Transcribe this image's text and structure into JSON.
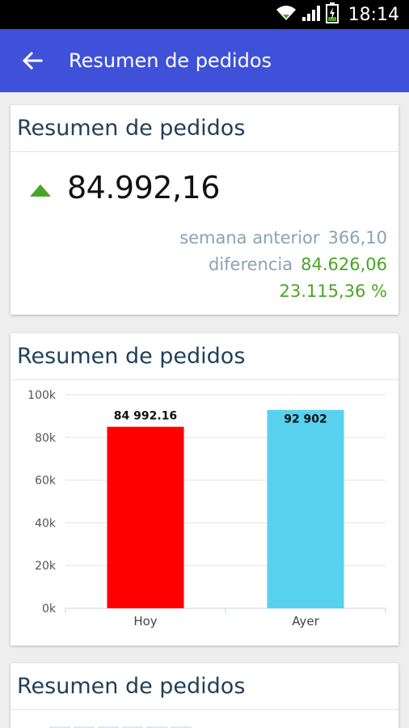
{
  "status_bar": {
    "time": "18:14"
  },
  "app_bar": {
    "title": "Resumen de pedidos"
  },
  "card1": {
    "title": "Resumen de pedidos",
    "value": "84.992,16",
    "trend": "up",
    "prev_label": "semana anterior",
    "prev_value": "366,10",
    "diff_label": "diferencia",
    "diff_value": "84.626,06",
    "pct": "23.115,36 %"
  },
  "card2": {
    "title": "Resumen de pedidos"
  },
  "card3": {
    "title": "Resumen de pedidos"
  },
  "colors": {
    "app_bar": "#3f51d8",
    "title_text": "#1f3f5a",
    "positive": "#4aa524",
    "muted": "#8aa3b4",
    "bar_hoy": "#ff0000",
    "bar_ayer": "#58d1ee"
  },
  "chart_data": {
    "type": "bar",
    "categories": [
      "Hoy",
      "Ayer"
    ],
    "values": [
      84992.16,
      92902
    ],
    "data_labels": [
      "84 992.16",
      "92 902"
    ],
    "bar_colors": [
      "#ff0000",
      "#58d1ee"
    ],
    "y_ticks": [
      0,
      20000,
      40000,
      60000,
      80000,
      100000
    ],
    "y_tick_labels": [
      "0k",
      "20k",
      "40k",
      "60k",
      "80k",
      "100k"
    ],
    "ylim": [
      0,
      100000
    ],
    "grid": true
  }
}
